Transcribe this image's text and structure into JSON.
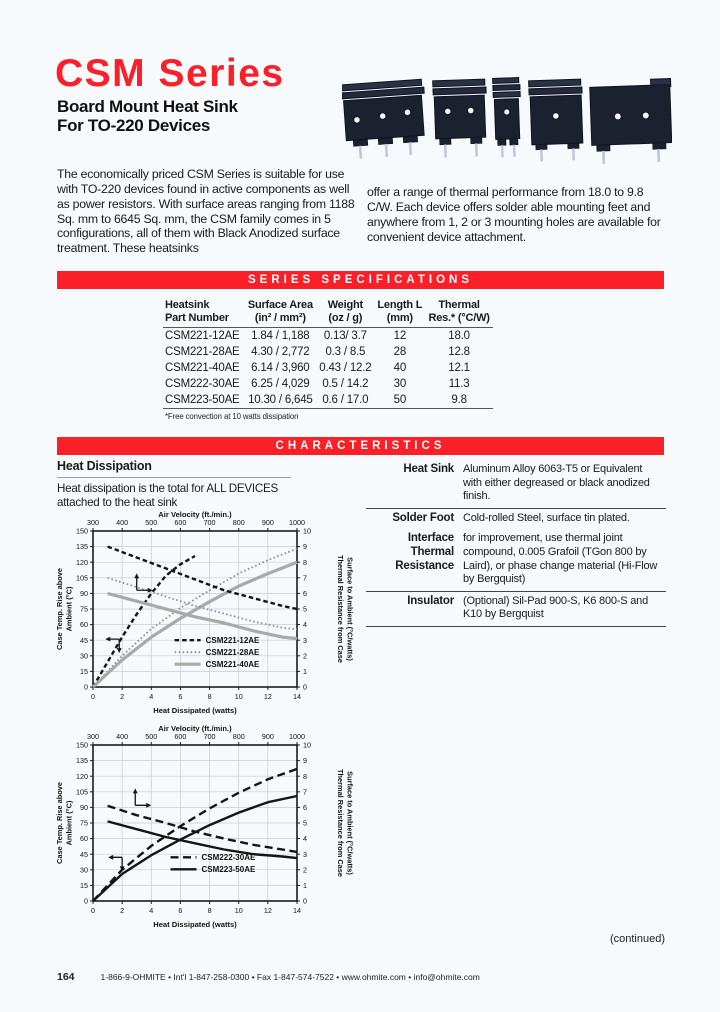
{
  "page": {
    "bg": "#f7fafd",
    "accent_red": "#fb2027",
    "title": "CSM Series",
    "subtitle_line1": "Board Mount Heat Sink",
    "subtitle_line2": "For TO-220 Devices",
    "intro_left": "The economically priced CSM Series is suitable for use with TO-220 devices found in active components as well as power resistors. With surface areas ranging from 1188 Sq. mm to 6645 Sq. mm, the CSM family comes in 5 configurations, all of them with Black Anodized surface treatment. These heatsinks",
    "intro_right": "offer a range of thermal performance from 18.0 to 9.8 C/W. Each device offers solder able mounting feet and anywhere from 1, 2 or 3 mounting holes are available for convenient device attachment.",
    "continued": "(continued)",
    "footer": {
      "page_number": "164",
      "contact": "1-866-9-OHMITE  •  Int'l 1-847-258-0300  •  Fax 1-847-574-7522  •  www.ohmite.com  •  info@ohmite.com"
    }
  },
  "series_specifications": {
    "banner": "SERIES SPECIFICATIONS",
    "headers": [
      [
        "Heatsink",
        "Part Number"
      ],
      [
        "Surface Area",
        "(in² / mm²)"
      ],
      [
        "Weight",
        "(oz / g)"
      ],
      [
        "Length L",
        "(mm)"
      ],
      [
        "Thermal",
        "Res.* (°C/W)"
      ]
    ],
    "rows": [
      [
        "CSM221-12AE",
        "1.84 / 1,188",
        "0.13/ 3.7",
        "12",
        "18.0"
      ],
      [
        "CSM221-28AE",
        "4.30 / 2,772",
        "0.3 / 8.5",
        "28",
        "12.8"
      ],
      [
        "CSM221-40AE",
        "6.14 / 3,960",
        "0.43 / 12.2",
        "40",
        "12.1"
      ],
      [
        "CSM222-30AE",
        "6.25 / 4,029",
        "0.5 / 14.2",
        "30",
        "11.3"
      ],
      [
        "CSM223-50AE",
        "10.30 / 6,645",
        "0.6 / 17.0",
        "50",
        "9.8"
      ]
    ],
    "footnote": "*Free convection at 10 watts dissipation"
  },
  "characteristics": {
    "banner": "CHARACTERISTICS",
    "left_heading": "Heat Dissipation",
    "left_text": "Heat dissipation is the total for ALL DEVICES attached to the heat sink",
    "rows": [
      {
        "label": "Heat Sink",
        "value": "Aluminum Alloy 6063-T5 or Equivalent with either degreased or black anodized finish.",
        "rule_below": true
      },
      {
        "label": "Solder Foot",
        "value": "Cold-rolled Steel, surface tin plated.",
        "rule_below": false
      },
      {
        "label": "Interface Thermal Resistance",
        "value": "for improvement, use thermal joint compound, 0.005 Grafoil (TGon 800 by Laird), or phase change material (Hi-Flow by Bergquist)",
        "rule_below": true
      },
      {
        "label": "Insulator",
        "value": "(Optional) Sil-Pad 900-S, K6 800-S and K10 by Bergquist",
        "rule_below": true
      }
    ]
  },
  "chart_data": [
    {
      "type": "line",
      "title": "CSM221 heat dissipation and thermal resistance",
      "top_axis_label": "Air Velocity (ft./min.)",
      "bottom_axis_label": "Heat Dissipated (watts)",
      "left_axis_label": [
        "Case Temp. Rise above",
        "Ambient (°C)"
      ],
      "right_axis_label": [
        "Thermal Resistance from Case",
        "Surface to Ambient (°C/watts)"
      ],
      "x_bottom": {
        "min": 0,
        "max": 14,
        "step": 2
      },
      "x_top": {
        "min": 300,
        "max": 1000,
        "step": 100
      },
      "y_left": {
        "min": 0,
        "max": 150,
        "step": 15
      },
      "y_right": {
        "min": 0,
        "max": 10,
        "step": 1
      },
      "grid": true,
      "legend_pos": {
        "fx": 0.4,
        "fy": 0.7
      },
      "legend": [
        {
          "label": "CSM221-12AE",
          "style": "dashed-black"
        },
        {
          "label": "CSM221-28AE",
          "style": "dotted-gray"
        },
        {
          "label": "CSM221-40AE",
          "style": "solid-gray"
        }
      ],
      "series": [
        {
          "name": "CSM221-12AE case temp rise",
          "axes": "bottom-left",
          "style": "dashed-black",
          "points": [
            [
              0,
              0
            ],
            [
              1,
              24
            ],
            [
              2,
              48
            ],
            [
              3,
              70
            ],
            [
              4,
              90
            ],
            [
              5,
              107
            ],
            [
              6,
              118
            ],
            [
              7,
              126
            ]
          ]
        },
        {
          "name": "CSM221-28AE case temp rise",
          "axes": "bottom-left",
          "style": "dotted-gray",
          "points": [
            [
              0,
              0
            ],
            [
              2,
              30
            ],
            [
              4,
              56
            ],
            [
              6,
              76
            ],
            [
              8,
              93
            ],
            [
              10,
              109
            ],
            [
              12,
              122
            ],
            [
              14,
              133
            ]
          ]
        },
        {
          "name": "CSM221-40AE case temp rise",
          "axes": "bottom-left",
          "style": "solid-gray",
          "points": [
            [
              0,
              0
            ],
            [
              2,
              26
            ],
            [
              4,
              48
            ],
            [
              6,
              66
            ],
            [
              8,
              82
            ],
            [
              10,
              97
            ],
            [
              12,
              109
            ],
            [
              14,
              120
            ]
          ]
        },
        {
          "name": "CSM221-12AE thermal resistance",
          "axes": "top-right",
          "style": "dashed-black",
          "points": [
            [
              350,
              9.0
            ],
            [
              450,
              8.3
            ],
            [
              550,
              7.6
            ],
            [
              650,
              6.9
            ],
            [
              750,
              6.2
            ],
            [
              850,
              5.7
            ],
            [
              950,
              5.2
            ],
            [
              1000,
              5.0
            ]
          ]
        },
        {
          "name": "CSM221-28AE thermal resistance",
          "axes": "top-right",
          "style": "dotted-gray",
          "points": [
            [
              350,
              7.0
            ],
            [
              450,
              6.4
            ],
            [
              550,
              5.8
            ],
            [
              650,
              5.2
            ],
            [
              750,
              4.7
            ],
            [
              850,
              4.2
            ],
            [
              950,
              3.8
            ],
            [
              1000,
              3.7
            ]
          ]
        },
        {
          "name": "CSM221-40AE thermal resistance",
          "axes": "top-right",
          "style": "solid-gray",
          "points": [
            [
              350,
              6.0
            ],
            [
              450,
              5.5
            ],
            [
              550,
              5.0
            ],
            [
              650,
              4.5
            ],
            [
              750,
              4.1
            ],
            [
              850,
              3.6
            ],
            [
              950,
              3.2
            ],
            [
              1000,
              3.1
            ]
          ]
        }
      ],
      "arrows": [
        {
          "kind": "up-right",
          "x": 3.0,
          "y": 93
        },
        {
          "kind": "left-down",
          "x": 1.8,
          "y": 46
        }
      ]
    },
    {
      "type": "line",
      "title": "CSM222 / CSM223 heat dissipation and thermal resistance",
      "top_axis_label": "Air Velocity (ft./min.)",
      "bottom_axis_label": "Heat Dissipated (watts)",
      "left_axis_label": [
        "Case Temp. Rise above",
        "Ambient (°C)"
      ],
      "right_axis_label": [
        "Thermal Resistance from Case",
        "Surface to Ambient (°C/watts)"
      ],
      "x_bottom": {
        "min": 0,
        "max": 14,
        "step": 2
      },
      "x_top": {
        "min": 300,
        "max": 1000,
        "step": 100
      },
      "y_left": {
        "min": 0,
        "max": 150,
        "step": 15
      },
      "y_right": {
        "min": 0,
        "max": 10,
        "step": 1
      },
      "grid": true,
      "legend_pos": {
        "fx": 0.38,
        "fy": 0.72
      },
      "legend": [
        {
          "label": "CSM222-30AE",
          "style": "long-dash-black"
        },
        {
          "label": "CSM223-50AE",
          "style": "solid-black"
        }
      ],
      "series": [
        {
          "name": "CSM222-30AE case temp rise",
          "axes": "bottom-left",
          "style": "long-dash-black",
          "points": [
            [
              0,
              0
            ],
            [
              2,
              30
            ],
            [
              4,
              53
            ],
            [
              6,
              72
            ],
            [
              8,
              89
            ],
            [
              10,
              104
            ],
            [
              12,
              117
            ],
            [
              14,
              127
            ]
          ]
        },
        {
          "name": "CSM223-50AE case temp rise",
          "axes": "bottom-left",
          "style": "solid-black",
          "points": [
            [
              0,
              0
            ],
            [
              2,
              26
            ],
            [
              4,
              44
            ],
            [
              6,
              59
            ],
            [
              8,
              73
            ],
            [
              10,
              85
            ],
            [
              12,
              95
            ],
            [
              14,
              101
            ]
          ]
        },
        {
          "name": "CSM222-30AE thermal resistance",
          "axes": "top-right",
          "style": "long-dash-black",
          "points": [
            [
              350,
              6.1
            ],
            [
              450,
              5.5
            ],
            [
              550,
              5.0
            ],
            [
              650,
              4.45
            ],
            [
              750,
              4.0
            ],
            [
              850,
              3.6
            ],
            [
              950,
              3.3
            ],
            [
              1000,
              3.15
            ]
          ]
        },
        {
          "name": "CSM223-50AE thermal resistance",
          "axes": "top-right",
          "style": "solid-black",
          "points": [
            [
              350,
              5.1
            ],
            [
              450,
              4.6
            ],
            [
              550,
              4.1
            ],
            [
              650,
              3.7
            ],
            [
              750,
              3.3
            ],
            [
              850,
              3.0
            ],
            [
              950,
              2.85
            ],
            [
              1000,
              2.75
            ]
          ]
        }
      ],
      "arrows": [
        {
          "kind": "up-right",
          "x": 2.9,
          "y": 92
        },
        {
          "kind": "left-down",
          "x": 2.0,
          "y": 42
        }
      ]
    }
  ]
}
